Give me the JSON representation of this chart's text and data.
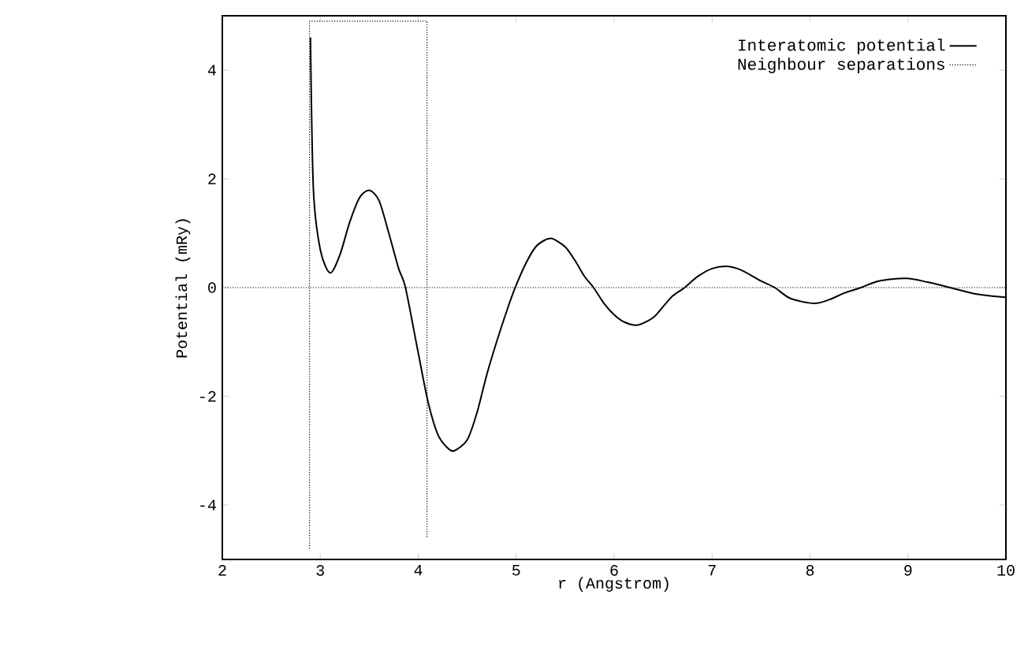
{
  "chart_data": {
    "type": "line",
    "xlabel": "r (Angstrom)",
    "ylabel": "Potential (mRy)",
    "xlim": [
      2,
      10
    ],
    "ylim": [
      -5,
      5
    ],
    "xticks": [
      2,
      3,
      4,
      5,
      6,
      7,
      8,
      9,
      10
    ],
    "yticks": [
      -4,
      -2,
      0,
      2,
      4
    ],
    "legend": "top right",
    "grid": false,
    "marker": "none",
    "series": [
      {
        "name": "Interatomic potential",
        "color": "#000000",
        "line_style": "solid",
        "x": [
          2.9,
          2.93,
          3.0,
          3.1,
          3.2,
          3.3,
          3.4,
          3.5,
          3.6,
          3.7,
          3.8,
          3.87,
          4.0,
          4.1,
          4.2,
          4.3,
          4.37,
          4.5,
          4.6,
          4.7,
          4.8,
          4.9,
          4.99,
          5.1,
          5.2,
          5.3,
          5.37,
          5.5,
          5.6,
          5.7,
          5.79,
          5.9,
          6.0,
          6.1,
          6.24,
          6.4,
          6.5,
          6.6,
          6.72,
          6.85,
          7.0,
          7.15,
          7.3,
          7.5,
          7.64,
          7.8,
          8.04,
          8.2,
          8.35,
          8.52,
          8.7,
          8.98,
          9.2,
          9.43,
          9.7,
          10
        ],
        "values": [
          4.6,
          1.8,
          0.7,
          0.27,
          0.6,
          1.2,
          1.65,
          1.79,
          1.6,
          1.0,
          0.35,
          0,
          -1.2,
          -2.1,
          -2.7,
          -2.95,
          -3.0,
          -2.8,
          -2.3,
          -1.6,
          -1.0,
          -0.45,
          0,
          0.45,
          0.75,
          0.88,
          0.9,
          0.75,
          0.5,
          0.2,
          0,
          -0.3,
          -0.5,
          -0.63,
          -0.69,
          -0.55,
          -0.35,
          -0.15,
          0,
          0.2,
          0.35,
          0.39,
          0.32,
          0.12,
          0,
          -0.2,
          -0.29,
          -0.22,
          -0.1,
          0,
          0.12,
          0.17,
          0.1,
          0,
          -0.12,
          -0.18
        ]
      },
      {
        "name": "Neighbour separations",
        "color": "#000000",
        "line_style": "dotted",
        "x": [
          2.89,
          2.89,
          4.09,
          4.09
        ],
        "values": [
          -4.8,
          4.9,
          4.9,
          -4.6
        ]
      }
    ],
    "ref_lines": [
      {
        "axis": "y",
        "value": 0,
        "color": "#000000",
        "line_style": "dotted"
      }
    ]
  }
}
